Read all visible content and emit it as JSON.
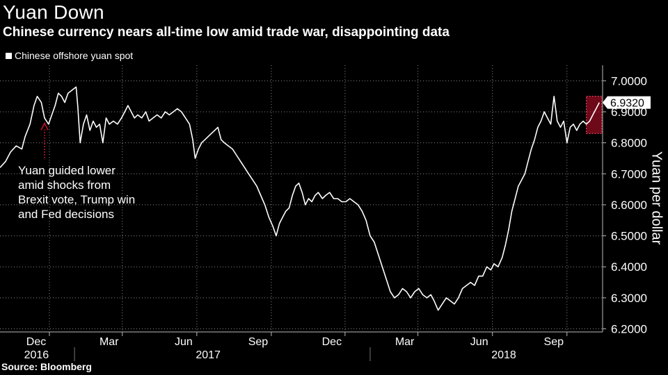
{
  "header": {
    "title": "Yuan Down",
    "subtitle": "Chinese currency nears all-time low amid trade war, disappointing data"
  },
  "footer": {
    "source": "Source: Bloomberg"
  },
  "colors": {
    "background": "#000000",
    "line": "#ffffff",
    "grid": "#8a8a8a",
    "highlight": "#c8102e"
  },
  "chart_data": {
    "type": "line",
    "title": "Yuan Down",
    "subtitle": "Chinese currency nears all-time low amid trade war, disappointing data",
    "ylabel": "Yuan per dollar",
    "ylim": [
      6.19,
      7.05
    ],
    "yticks": [
      "7.0000",
      "6.9000",
      "6.8000",
      "6.7000",
      "6.6000",
      "6.5000",
      "6.4000",
      "6.3000",
      "6.2000"
    ],
    "xlim": [
      "2016-10-01",
      "2018-10-15"
    ],
    "month_ticks": [
      {
        "date": "2016-12-01",
        "label": "Dec"
      },
      {
        "date": "2017-03-01",
        "label": "Mar"
      },
      {
        "date": "2017-06-01",
        "label": "Jun"
      },
      {
        "date": "2017-09-01",
        "label": "Sep"
      },
      {
        "date": "2017-12-01",
        "label": "Dec"
      },
      {
        "date": "2018-03-01",
        "label": "Mar"
      },
      {
        "date": "2018-06-01",
        "label": "Jun"
      },
      {
        "date": "2018-09-01",
        "label": "Sep"
      }
    ],
    "year_labels": [
      {
        "date": "2016-11-15",
        "label": "2016"
      },
      {
        "date": "2017-06-15",
        "label": "2017"
      },
      {
        "date": "2018-06-15",
        "label": "2018"
      }
    ],
    "year_dividers": [
      "2017-01-01",
      "2018-01-01"
    ],
    "grid": true,
    "legend": {
      "position": "top-left",
      "entries": [
        "Chinese offshore yuan spot"
      ]
    },
    "series": [
      {
        "name": "Chinese offshore yuan spot",
        "points": [
          [
            "2016-10-01",
            6.72
          ],
          [
            "2016-10-08",
            6.74
          ],
          [
            "2016-10-14",
            6.77
          ],
          [
            "2016-10-21",
            6.79
          ],
          [
            "2016-10-28",
            6.78
          ],
          [
            "2016-11-01",
            6.82
          ],
          [
            "2016-11-07",
            6.86
          ],
          [
            "2016-11-12",
            6.92
          ],
          [
            "2016-11-16",
            6.95
          ],
          [
            "2016-11-21",
            6.93
          ],
          [
            "2016-11-25",
            6.88
          ],
          [
            "2016-11-30",
            6.86
          ],
          [
            "2016-12-04",
            6.89
          ],
          [
            "2016-12-08",
            6.92
          ],
          [
            "2016-12-12",
            6.96
          ],
          [
            "2016-12-16",
            6.95
          ],
          [
            "2016-12-20",
            6.93
          ],
          [
            "2016-12-24",
            6.96
          ],
          [
            "2016-12-29",
            6.97
          ],
          [
            "2017-01-03",
            6.98
          ],
          [
            "2017-01-05",
            6.92
          ],
          [
            "2017-01-08",
            6.8
          ],
          [
            "2017-01-12",
            6.86
          ],
          [
            "2017-01-16",
            6.89
          ],
          [
            "2017-01-20",
            6.84
          ],
          [
            "2017-01-24",
            6.87
          ],
          [
            "2017-01-28",
            6.85
          ],
          [
            "2017-02-01",
            6.86
          ],
          [
            "2017-02-05",
            6.8
          ],
          [
            "2017-02-09",
            6.88
          ],
          [
            "2017-02-13",
            6.86
          ],
          [
            "2017-02-18",
            6.87
          ],
          [
            "2017-02-23",
            6.86
          ],
          [
            "2017-02-28",
            6.88
          ],
          [
            "2017-03-04",
            6.9
          ],
          [
            "2017-03-08",
            6.92
          ],
          [
            "2017-03-12",
            6.9
          ],
          [
            "2017-03-16",
            6.88
          ],
          [
            "2017-03-20",
            6.89
          ],
          [
            "2017-03-25",
            6.88
          ],
          [
            "2017-03-30",
            6.9
          ],
          [
            "2017-04-03",
            6.87
          ],
          [
            "2017-04-08",
            6.88
          ],
          [
            "2017-04-13",
            6.89
          ],
          [
            "2017-04-18",
            6.88
          ],
          [
            "2017-04-23",
            6.9
          ],
          [
            "2017-04-28",
            6.89
          ],
          [
            "2017-05-03",
            6.9
          ],
          [
            "2017-05-08",
            6.91
          ],
          [
            "2017-05-13",
            6.9
          ],
          [
            "2017-05-18",
            6.88
          ],
          [
            "2017-05-23",
            6.86
          ],
          [
            "2017-05-27",
            6.81
          ],
          [
            "2017-05-30",
            6.75
          ],
          [
            "2017-06-03",
            6.78
          ],
          [
            "2017-06-07",
            6.8
          ],
          [
            "2017-06-11",
            6.81
          ],
          [
            "2017-06-15",
            6.82
          ],
          [
            "2017-06-19",
            6.83
          ],
          [
            "2017-06-23",
            6.84
          ],
          [
            "2017-06-27",
            6.85
          ],
          [
            "2017-07-01",
            6.81
          ],
          [
            "2017-07-05",
            6.8
          ],
          [
            "2017-07-10",
            6.79
          ],
          [
            "2017-07-15",
            6.78
          ],
          [
            "2017-07-20",
            6.76
          ],
          [
            "2017-07-25",
            6.74
          ],
          [
            "2017-07-30",
            6.72
          ],
          [
            "2017-08-04",
            6.7
          ],
          [
            "2017-08-09",
            6.68
          ],
          [
            "2017-08-14",
            6.66
          ],
          [
            "2017-08-19",
            6.63
          ],
          [
            "2017-08-24",
            6.6
          ],
          [
            "2017-08-29",
            6.56
          ],
          [
            "2017-09-03",
            6.53
          ],
          [
            "2017-09-07",
            6.5
          ],
          [
            "2017-09-11",
            6.54
          ],
          [
            "2017-09-15",
            6.56
          ],
          [
            "2017-09-19",
            6.58
          ],
          [
            "2017-09-23",
            6.59
          ],
          [
            "2017-09-27",
            6.63
          ],
          [
            "2017-10-01",
            6.66
          ],
          [
            "2017-10-05",
            6.67
          ],
          [
            "2017-10-09",
            6.64
          ],
          [
            "2017-10-13",
            6.6
          ],
          [
            "2017-10-17",
            6.62
          ],
          [
            "2017-10-21",
            6.61
          ],
          [
            "2017-10-25",
            6.63
          ],
          [
            "2017-10-29",
            6.64
          ],
          [
            "2017-11-03",
            6.62
          ],
          [
            "2017-11-07",
            6.63
          ],
          [
            "2017-11-12",
            6.64
          ],
          [
            "2017-11-17",
            6.62
          ],
          [
            "2017-11-22",
            6.62
          ],
          [
            "2017-11-27",
            6.61
          ],
          [
            "2017-12-02",
            6.61
          ],
          [
            "2017-12-07",
            6.62
          ],
          [
            "2017-12-12",
            6.61
          ],
          [
            "2017-12-17",
            6.6
          ],
          [
            "2017-12-22",
            6.58
          ],
          [
            "2017-12-27",
            6.55
          ],
          [
            "2018-01-01",
            6.5
          ],
          [
            "2018-01-06",
            6.48
          ],
          [
            "2018-01-11",
            6.44
          ],
          [
            "2018-01-16",
            6.4
          ],
          [
            "2018-01-21",
            6.36
          ],
          [
            "2018-01-26",
            6.32
          ],
          [
            "2018-01-31",
            6.3
          ],
          [
            "2018-02-05",
            6.31
          ],
          [
            "2018-02-10",
            6.33
          ],
          [
            "2018-02-15",
            6.32
          ],
          [
            "2018-02-20",
            6.3
          ],
          [
            "2018-02-25",
            6.32
          ],
          [
            "2018-03-02",
            6.33
          ],
          [
            "2018-03-07",
            6.31
          ],
          [
            "2018-03-12",
            6.3
          ],
          [
            "2018-03-17",
            6.31
          ],
          [
            "2018-03-21",
            6.29
          ],
          [
            "2018-03-26",
            6.26
          ],
          [
            "2018-03-31",
            6.28
          ],
          [
            "2018-04-05",
            6.3
          ],
          [
            "2018-04-10",
            6.29
          ],
          [
            "2018-04-15",
            6.28
          ],
          [
            "2018-04-20",
            6.3
          ],
          [
            "2018-04-25",
            6.33
          ],
          [
            "2018-04-30",
            6.34
          ],
          [
            "2018-05-05",
            6.35
          ],
          [
            "2018-05-10",
            6.34
          ],
          [
            "2018-05-15",
            6.37
          ],
          [
            "2018-05-20",
            6.37
          ],
          [
            "2018-05-25",
            6.4
          ],
          [
            "2018-05-30",
            6.39
          ],
          [
            "2018-06-03",
            6.41
          ],
          [
            "2018-06-08",
            6.4
          ],
          [
            "2018-06-13",
            6.43
          ],
          [
            "2018-06-17",
            6.47
          ],
          [
            "2018-06-21",
            6.52
          ],
          [
            "2018-06-25",
            6.58
          ],
          [
            "2018-06-29",
            6.62
          ],
          [
            "2018-07-03",
            6.66
          ],
          [
            "2018-07-07",
            6.68
          ],
          [
            "2018-07-11",
            6.7
          ],
          [
            "2018-07-15",
            6.74
          ],
          [
            "2018-07-19",
            6.78
          ],
          [
            "2018-07-23",
            6.81
          ],
          [
            "2018-07-27",
            6.85
          ],
          [
            "2018-07-31",
            6.87
          ],
          [
            "2018-08-04",
            6.9
          ],
          [
            "2018-08-08",
            6.88
          ],
          [
            "2018-08-12",
            6.86
          ],
          [
            "2018-08-16",
            6.95
          ],
          [
            "2018-08-20",
            6.87
          ],
          [
            "2018-08-24",
            6.85
          ],
          [
            "2018-08-28",
            6.87
          ],
          [
            "2018-09-01",
            6.8
          ],
          [
            "2018-09-05",
            6.85
          ],
          [
            "2018-09-09",
            6.86
          ],
          [
            "2018-09-13",
            6.84
          ],
          [
            "2018-09-17",
            6.86
          ],
          [
            "2018-09-21",
            6.87
          ],
          [
            "2018-09-25",
            6.86
          ],
          [
            "2018-09-29",
            6.87
          ],
          [
            "2018-10-03",
            6.89
          ],
          [
            "2018-10-07",
            6.91
          ],
          [
            "2018-10-11",
            6.93
          ]
        ]
      }
    ],
    "last_value_label": "6.9320",
    "highlight_box": {
      "x_range": [
        "2018-09-25",
        "2018-10-14"
      ],
      "y_range": [
        6.83,
        6.95
      ]
    },
    "annotations": [
      {
        "text_lines": [
          "Yuan guided lower",
          "amid shocks from",
          "Brexit vote, Trump win",
          "and Fed decisions"
        ],
        "arrow_to": [
          "2016-11-25",
          6.87
        ]
      }
    ]
  }
}
